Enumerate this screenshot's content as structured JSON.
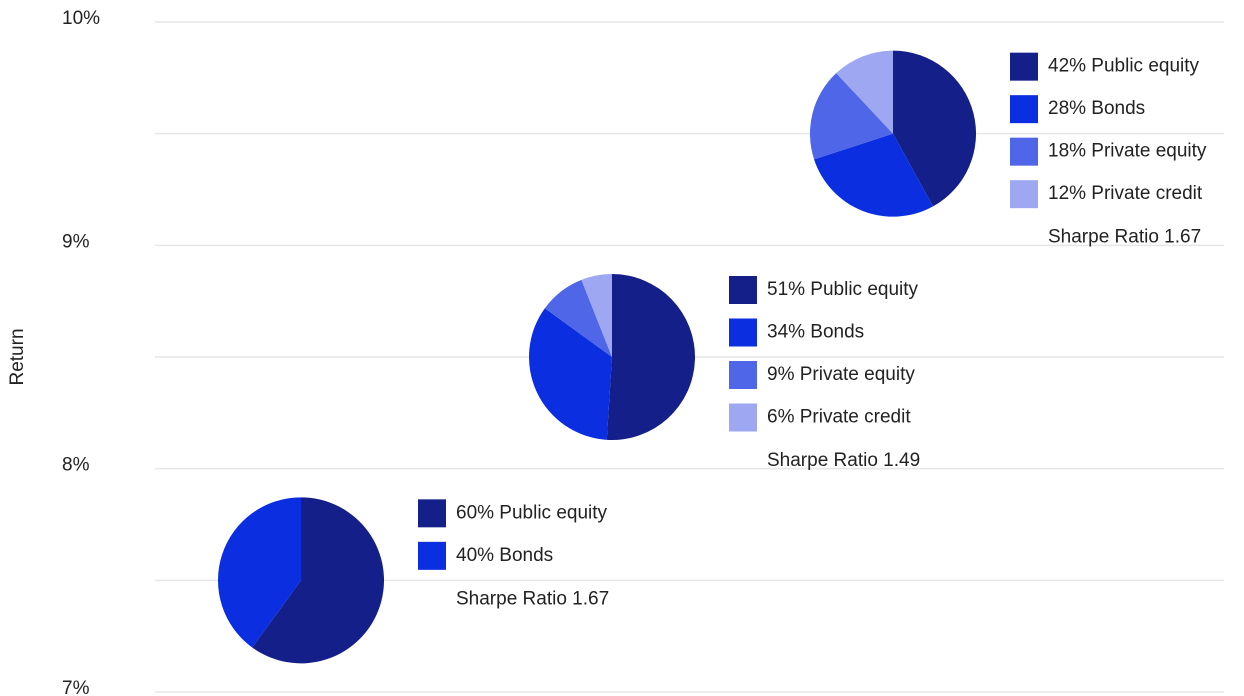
{
  "chart_data": {
    "type": "pie",
    "y_label": "Return",
    "ylim": [
      7,
      10
    ],
    "yticks": [
      {
        "value": 7,
        "label": "7%"
      },
      {
        "value": 8,
        "label": "8%"
      },
      {
        "value": 9,
        "label": "9%"
      },
      {
        "value": 10,
        "label": "10%"
      }
    ],
    "minor_yticks": [
      7.5,
      8.5,
      9.5
    ],
    "grid": true,
    "colors": [
      "#151f8a",
      "#0a2ee0",
      "#4f66e8",
      "#9ea8f2"
    ],
    "portfolios": [
      {
        "y": 7.5,
        "values": [
          60,
          40
        ],
        "value_labels": [
          "60% Public equity",
          "40% Bonds"
        ],
        "note": "Sharpe Ratio 1.67"
      },
      {
        "y": 8.5,
        "values": [
          51,
          34,
          9,
          6
        ],
        "value_labels": [
          "51% Public equity",
          "34% Bonds",
          "9% Private equity",
          "6% Private credit"
        ],
        "note": "Sharpe Ratio 1.49"
      },
      {
        "y": 9.5,
        "values": [
          42,
          28,
          18,
          12
        ],
        "value_labels": [
          "42% Public equity",
          "28% Bonds",
          "18% Private equity",
          "12% Private credit"
        ],
        "note": "Sharpe Ratio 1.67"
      }
    ]
  }
}
